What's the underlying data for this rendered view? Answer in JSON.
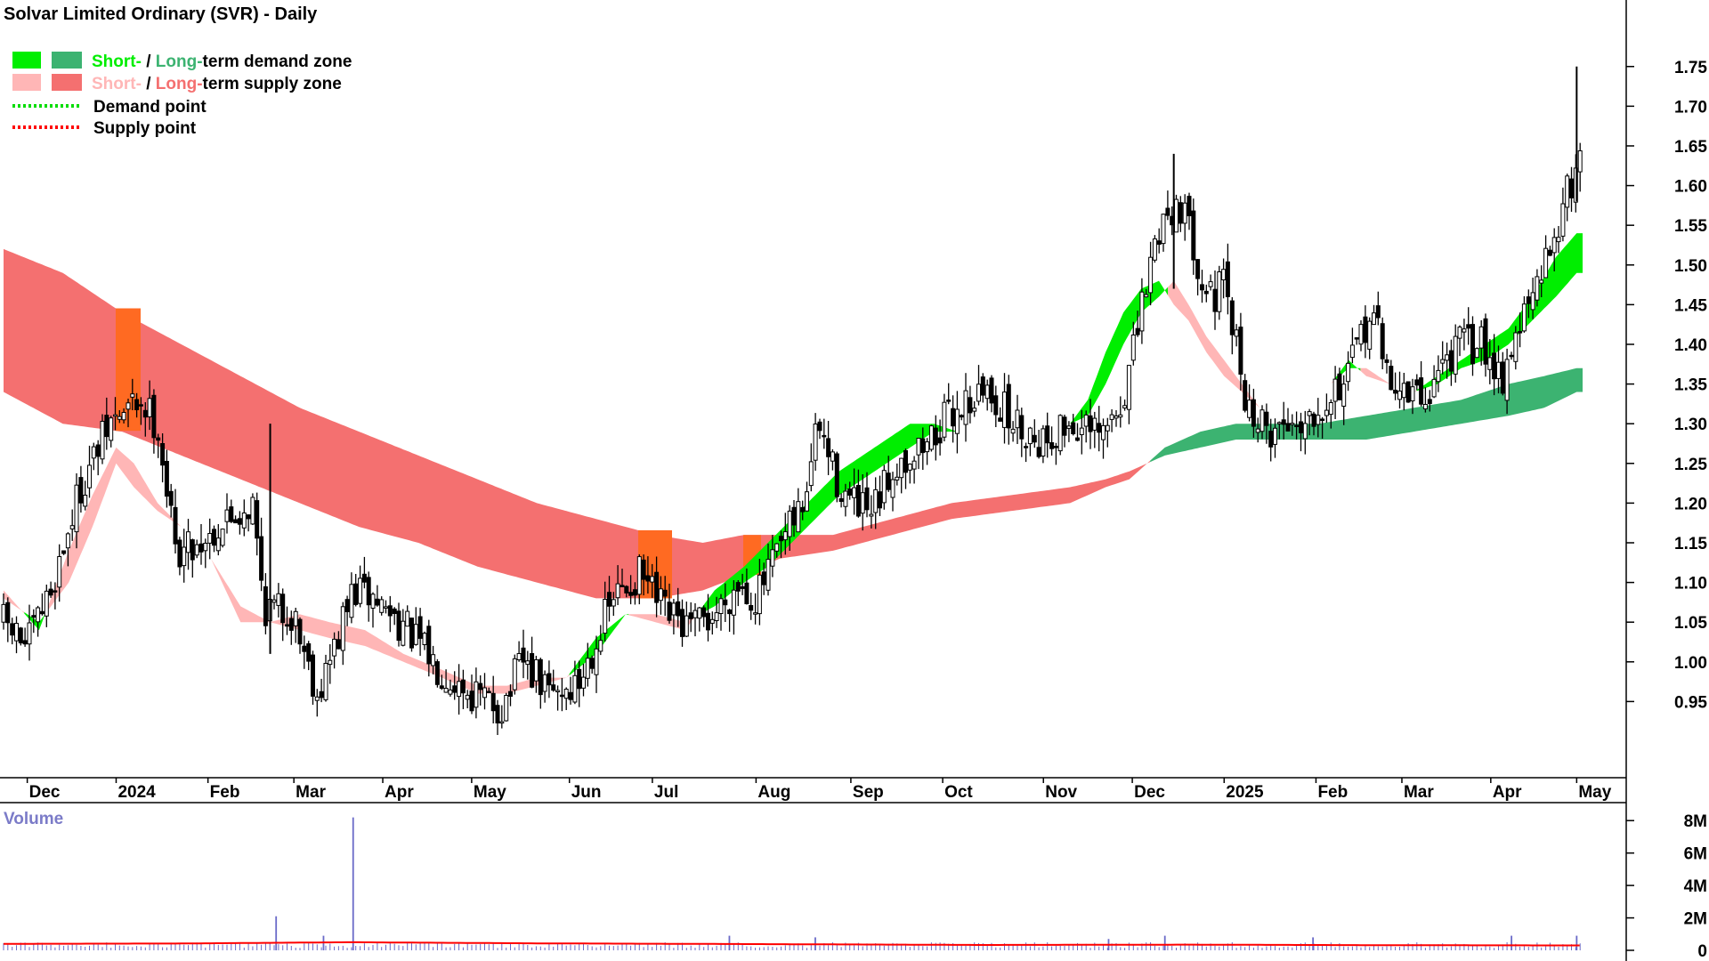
{
  "chart_data": {
    "type": "candlestick",
    "title": "Solvar Limited Ordinary (SVR) - Daily",
    "legend": [
      {
        "label_short": "Short-",
        "sep": " / ",
        "label_long": "Long-",
        "label_rest": "term demand zone",
        "short_color": "#00ee00",
        "long_color": "#3cb371",
        "rest_color": "#000000"
      },
      {
        "label_short": "Short-",
        "sep": " / ",
        "label_long": "Long-",
        "label_rest": "term supply zone",
        "short_color": "#ffb6b6",
        "long_color": "#f47070",
        "rest_color": "#000000"
      },
      {
        "label": "Demand point",
        "dotted": true,
        "color": "#00dd00"
      },
      {
        "label": "Supply point",
        "dotted": true,
        "color": "#ff0000"
      }
    ],
    "price_axis": {
      "ylim": [
        0.9,
        1.78
      ],
      "ticks": [
        "0.95",
        "1.00",
        "1.05",
        "1.10",
        "1.15",
        "1.20",
        "1.25",
        "1.30",
        "1.35",
        "1.40",
        "1.45",
        "1.50",
        "1.55",
        "1.60",
        "1.65",
        "1.70",
        "1.75"
      ]
    },
    "x_axis": {
      "labels": [
        "Dec",
        "2024",
        "Feb",
        "Mar",
        "Apr",
        "May",
        "Jun",
        "Jul",
        "Aug",
        "Sep",
        "Oct",
        "Nov",
        "Dec",
        "2025",
        "Feb",
        "Mar",
        "Apr",
        "May"
      ],
      "label_days": [
        8,
        38,
        69,
        98,
        128,
        158,
        191,
        219,
        254,
        286,
        317,
        351,
        381,
        412,
        443,
        472,
        502,
        531
      ]
    },
    "price_anchors": [
      [
        0,
        1.05
      ],
      [
        8,
        1.02
      ],
      [
        16,
        1.09
      ],
      [
        26,
        1.22
      ],
      [
        36,
        1.3
      ],
      [
        46,
        1.33
      ],
      [
        52,
        1.3
      ],
      [
        58,
        1.14
      ],
      [
        66,
        1.15
      ],
      [
        76,
        1.18
      ],
      [
        84,
        1.2
      ],
      [
        88,
        1.07
      ],
      [
        98,
        1.06
      ],
      [
        106,
        0.96
      ],
      [
        112,
        1.02
      ],
      [
        118,
        1.09
      ],
      [
        125,
        1.08
      ],
      [
        134,
        1.05
      ],
      [
        145,
        1.0
      ],
      [
        158,
        0.96
      ],
      [
        168,
        0.94
      ],
      [
        175,
        1.0
      ],
      [
        184,
        0.96
      ],
      [
        194,
        0.97
      ],
      [
        200,
        1.03
      ],
      [
        206,
        1.08
      ],
      [
        215,
        1.11
      ],
      [
        223,
        1.06
      ],
      [
        232,
        1.04
      ],
      [
        240,
        1.06
      ],
      [
        248,
        1.1
      ],
      [
        254,
        1.08
      ],
      [
        262,
        1.14
      ],
      [
        270,
        1.2
      ],
      [
        275,
        1.3
      ],
      [
        281,
        1.23
      ],
      [
        286,
        1.2
      ],
      [
        293,
        1.18
      ],
      [
        301,
        1.25
      ],
      [
        310,
        1.27
      ],
      [
        317,
        1.3
      ],
      [
        325,
        1.33
      ],
      [
        333,
        1.34
      ],
      [
        341,
        1.3
      ],
      [
        351,
        1.28
      ],
      [
        360,
        1.3
      ],
      [
        370,
        1.28
      ],
      [
        377,
        1.32
      ],
      [
        382,
        1.4
      ],
      [
        387,
        1.5
      ],
      [
        391,
        1.56
      ],
      [
        397,
        1.58
      ],
      [
        402,
        1.52
      ],
      [
        407,
        1.46
      ],
      [
        412,
        1.47
      ],
      [
        416,
        1.4
      ],
      [
        420,
        1.32
      ],
      [
        426,
        1.29
      ],
      [
        433,
        1.3
      ],
      [
        440,
        1.31
      ],
      [
        448,
        1.34
      ],
      [
        454,
        1.36
      ],
      [
        462,
        1.45
      ],
      [
        466,
        1.37
      ],
      [
        472,
        1.34
      ],
      [
        480,
        1.33
      ],
      [
        486,
        1.38
      ],
      [
        492,
        1.4
      ],
      [
        500,
        1.4
      ],
      [
        506,
        1.36
      ],
      [
        511,
        1.42
      ],
      [
        518,
        1.47
      ],
      [
        524,
        1.55
      ],
      [
        529,
        1.6
      ],
      [
        533,
        1.66
      ]
    ],
    "short_band": [
      [
        0,
        1.09,
        1.08
      ],
      [
        12,
        1.04,
        1.05
      ],
      [
        22,
        1.14,
        1.1
      ],
      [
        30,
        1.21,
        1.17
      ],
      [
        38,
        1.27,
        1.25
      ],
      [
        44,
        1.25,
        1.22
      ],
      [
        52,
        1.2,
        1.19
      ],
      [
        60,
        1.17,
        1.17
      ],
      [
        70,
        1.13,
        1.13
      ],
      [
        80,
        1.07,
        1.05
      ],
      [
        90,
        1.05,
        1.05
      ],
      [
        100,
        1.06,
        1.04
      ],
      [
        110,
        1.05,
        1.03
      ],
      [
        122,
        1.04,
        1.02
      ],
      [
        135,
        1.01,
        1.0
      ],
      [
        148,
        0.99,
        0.98
      ],
      [
        160,
        0.97,
        0.96
      ],
      [
        170,
        0.97,
        0.96
      ],
      [
        180,
        0.98,
        0.97
      ],
      [
        190,
        0.98,
        0.98
      ],
      [
        200,
        1.01,
        1.03
      ],
      [
        210,
        1.06,
        1.06
      ],
      [
        220,
        1.06,
        1.05
      ],
      [
        230,
        1.05,
        1.04
      ],
      [
        240,
        1.07,
        1.09
      ],
      [
        250,
        1.1,
        1.12
      ],
      [
        258,
        1.12,
        1.15
      ],
      [
        266,
        1.15,
        1.18
      ],
      [
        274,
        1.18,
        1.21
      ],
      [
        282,
        1.21,
        1.24
      ],
      [
        290,
        1.23,
        1.26
      ],
      [
        298,
        1.25,
        1.28
      ],
      [
        306,
        1.27,
        1.3
      ],
      [
        314,
        1.29,
        1.3
      ],
      [
        322,
        1.29,
        1.29
      ],
      [
        330,
        1.28,
        1.28
      ],
      [
        340,
        1.29,
        1.29
      ],
      [
        350,
        1.29,
        1.29
      ],
      [
        360,
        1.3,
        1.3
      ],
      [
        366,
        1.31,
        1.33
      ],
      [
        372,
        1.35,
        1.39
      ],
      [
        378,
        1.4,
        1.44
      ],
      [
        384,
        1.44,
        1.47
      ],
      [
        390,
        1.46,
        1.48
      ],
      [
        395,
        1.48,
        1.45
      ],
      [
        400,
        1.45,
        1.43
      ],
      [
        406,
        1.41,
        1.39
      ],
      [
        412,
        1.38,
        1.36
      ],
      [
        418,
        1.35,
        1.34
      ],
      [
        424,
        1.32,
        1.32
      ],
      [
        432,
        1.32,
        1.32
      ],
      [
        440,
        1.33,
        1.33
      ],
      [
        448,
        1.35,
        1.35
      ],
      [
        454,
        1.37,
        1.38
      ],
      [
        460,
        1.37,
        1.36
      ],
      [
        468,
        1.35,
        1.35
      ],
      [
        476,
        1.34,
        1.34
      ],
      [
        484,
        1.35,
        1.36
      ],
      [
        492,
        1.37,
        1.38
      ],
      [
        500,
        1.38,
        1.4
      ],
      [
        508,
        1.4,
        1.42
      ],
      [
        516,
        1.43,
        1.46
      ],
      [
        524,
        1.46,
        1.51
      ],
      [
        531,
        1.49,
        1.54
      ]
    ],
    "long_band": [
      [
        0,
        1.52,
        1.34
      ],
      [
        20,
        1.49,
        1.3
      ],
      [
        40,
        1.44,
        1.29
      ],
      [
        60,
        1.4,
        1.26
      ],
      [
        80,
        1.36,
        1.23
      ],
      [
        100,
        1.32,
        1.2
      ],
      [
        120,
        1.29,
        1.17
      ],
      [
        140,
        1.26,
        1.15
      ],
      [
        160,
        1.23,
        1.12
      ],
      [
        180,
        1.2,
        1.1
      ],
      [
        200,
        1.18,
        1.08
      ],
      [
        220,
        1.16,
        1.08
      ],
      [
        236,
        1.15,
        1.09
      ],
      [
        250,
        1.16,
        1.11
      ],
      [
        262,
        1.16,
        1.13
      ],
      [
        280,
        1.16,
        1.14
      ],
      [
        300,
        1.18,
        1.16
      ],
      [
        320,
        1.2,
        1.18
      ],
      [
        340,
        1.21,
        1.19
      ],
      [
        360,
        1.22,
        1.2
      ],
      [
        372,
        1.23,
        1.22
      ],
      [
        380,
        1.24,
        1.23
      ],
      [
        392,
        1.26,
        1.27
      ],
      [
        404,
        1.27,
        1.29
      ],
      [
        416,
        1.28,
        1.3
      ],
      [
        430,
        1.28,
        1.3
      ],
      [
        444,
        1.28,
        1.3
      ],
      [
        460,
        1.28,
        1.31
      ],
      [
        476,
        1.29,
        1.32
      ],
      [
        492,
        1.3,
        1.33
      ],
      [
        508,
        1.31,
        1.35
      ],
      [
        520,
        1.32,
        1.36
      ],
      [
        531,
        1.34,
        1.37
      ]
    ],
    "volume_axis": {
      "ylim": [
        0,
        9000000
      ],
      "ticks": [
        "0",
        "2M",
        "4M",
        "6M",
        "8M"
      ],
      "title": "Volume"
    },
    "volume_spikes": [
      [
        92,
        2100000
      ],
      [
        118,
        8200000
      ],
      [
        108,
        900000
      ],
      [
        245,
        900000
      ],
      [
        274,
        800000
      ],
      [
        373,
        700000
      ],
      [
        392,
        900000
      ],
      [
        442,
        800000
      ],
      [
        509,
        900000
      ],
      [
        531,
        900000
      ]
    ],
    "volume_ma": [
      [
        0,
        400000
      ],
      [
        60,
        420000
      ],
      [
        117,
        500000
      ],
      [
        180,
        430000
      ],
      [
        260,
        380000
      ],
      [
        330,
        330000
      ],
      [
        400,
        350000
      ],
      [
        460,
        320000
      ],
      [
        531,
        300000
      ]
    ],
    "colors": {
      "candle": "#000000",
      "short_demand": "#00ee00",
      "short_supply": "#ffb6b6",
      "long_demand": "#3cb371",
      "long_supply": "#f47070",
      "overlap": "#ff6a22",
      "volume_bar": "#6a6ac8",
      "volume_ma": "#ff0000",
      "axis": "#000000"
    }
  }
}
